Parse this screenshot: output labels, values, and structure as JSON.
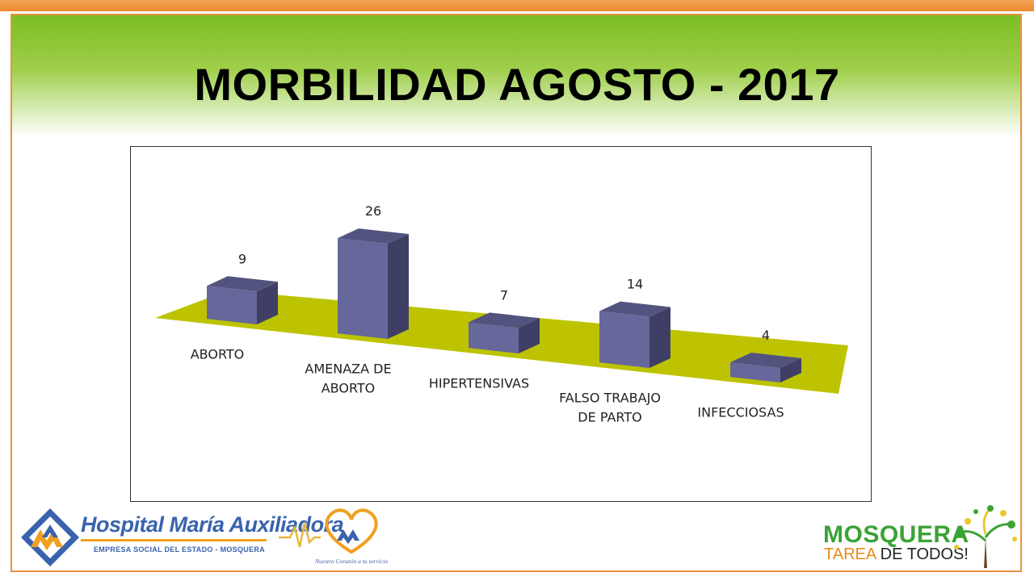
{
  "slide": {
    "title": "MORBILIDAD AGOSTO - 2017"
  },
  "colors": {
    "accent_orange": "#ee8a2f",
    "header_green": "#7dbd23",
    "bar_front": "#66679b",
    "bar_side": "#3f3f66",
    "bar_top": "#52537f",
    "floor": "#bdc300"
  },
  "chart_data": {
    "type": "bar",
    "style": "3d-bar",
    "categories": [
      "ABORTO",
      "AMENAZA DE ABORTO",
      "HIPERTENSIVAS",
      "FALSO TRABAJO DE PARTO",
      "INFECCIOSAS"
    ],
    "category_lines": [
      [
        "ABORTO"
      ],
      [
        "AMENAZA DE",
        "ABORTO"
      ],
      [
        "HIPERTENSIVAS"
      ],
      [
        "FALSO TRABAJO",
        "DE PARTO"
      ],
      [
        "INFECCIOSAS"
      ]
    ],
    "values": [
      9,
      26,
      7,
      14,
      4
    ],
    "data_labels": [
      "9",
      "26",
      "7",
      "14",
      "4"
    ],
    "title": "",
    "xlabel": "",
    "ylabel": "",
    "legend": "none",
    "grid": false
  },
  "footer": {
    "hospital_name": "Hospital María Auxiliadora",
    "hospital_subtitle": "EMPRESA SOCIAL DEL ESTADO - MOSQUERA",
    "slogan": "Nuestro Corazón a tu servicio",
    "mosquera_name": "MOSQUERA",
    "mosquera_tag_a": "TAREA",
    "mosquera_tag_b": "DE TODOS!"
  }
}
